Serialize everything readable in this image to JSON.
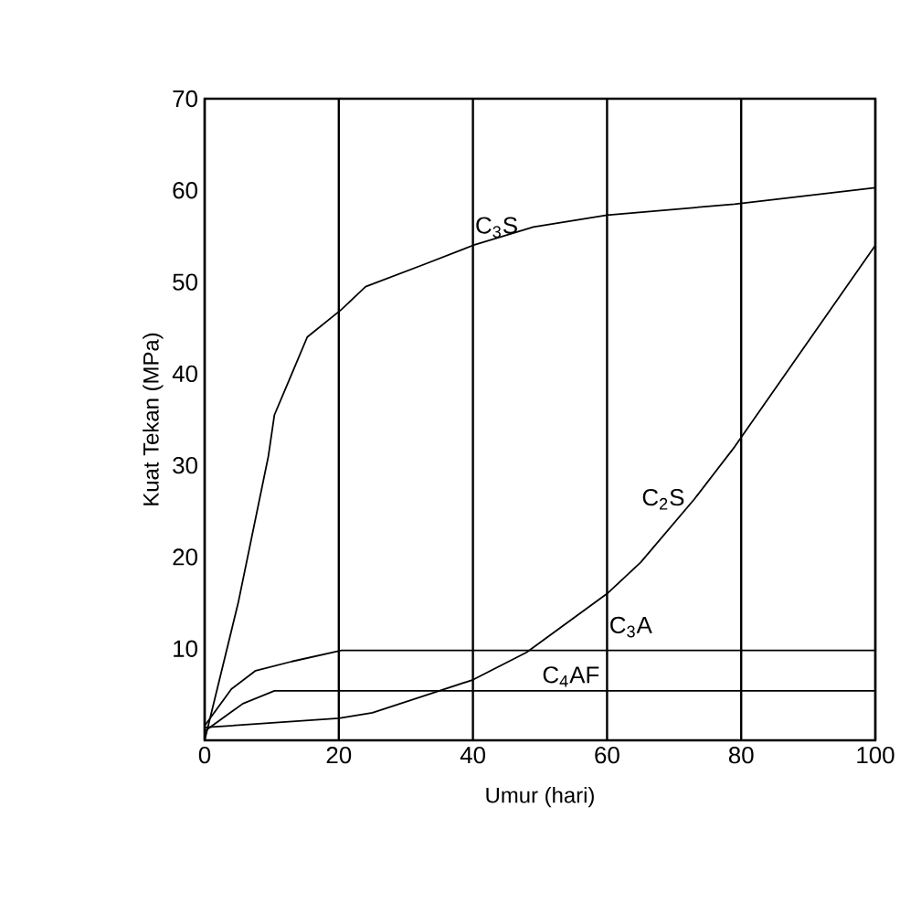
{
  "chart_data": {
    "type": "line",
    "xlabel": "Umur (hari)",
    "ylabel": "Kuat Tekan (MPa)",
    "xlim": [
      0,
      100
    ],
    "ylim": [
      0,
      70
    ],
    "xticks": [
      0,
      20,
      40,
      60,
      80,
      100
    ],
    "yticks": [
      10,
      20,
      30,
      40,
      50,
      60,
      70
    ],
    "grid": "x",
    "legend": false,
    "marker": "none",
    "line_style": "solid",
    "series": [
      {
        "name": "C$_{3}$S",
        "color": "#000000",
        "x": [
          0,
          5,
          9.5,
          10.4,
          13,
          15.3,
          20.4,
          24,
          33,
          40,
          49,
          60,
          79,
          100
        ],
        "values": [
          0,
          15,
          31,
          35.5,
          40,
          44,
          47,
          49.5,
          52,
          54,
          56,
          57.3,
          58.5,
          60.3
        ]
      },
      {
        "name": "C$_{2}$S",
        "color": "#000000",
        "x": [
          0,
          20,
          25,
          40,
          48,
          60,
          65,
          73,
          79,
          100
        ],
        "values": [
          1.4,
          2.4,
          3,
          6.6,
          9.6,
          16,
          19.4,
          26.3,
          32,
          54
        ]
      },
      {
        "name": "C$_{3}$A",
        "color": "#000000",
        "x": [
          0,
          4,
          7.6,
          13,
          20.4,
          100
        ],
        "values": [
          1.6,
          5.6,
          7.6,
          8.6,
          9.8,
          9.8
        ]
      },
      {
        "name": "C$_{4}$AF",
        "color": "#000000",
        "x": [
          0,
          5.7,
          10.4,
          13,
          100
        ],
        "values": [
          1,
          4,
          5.4,
          5.4,
          5.4
        ]
      }
    ]
  }
}
